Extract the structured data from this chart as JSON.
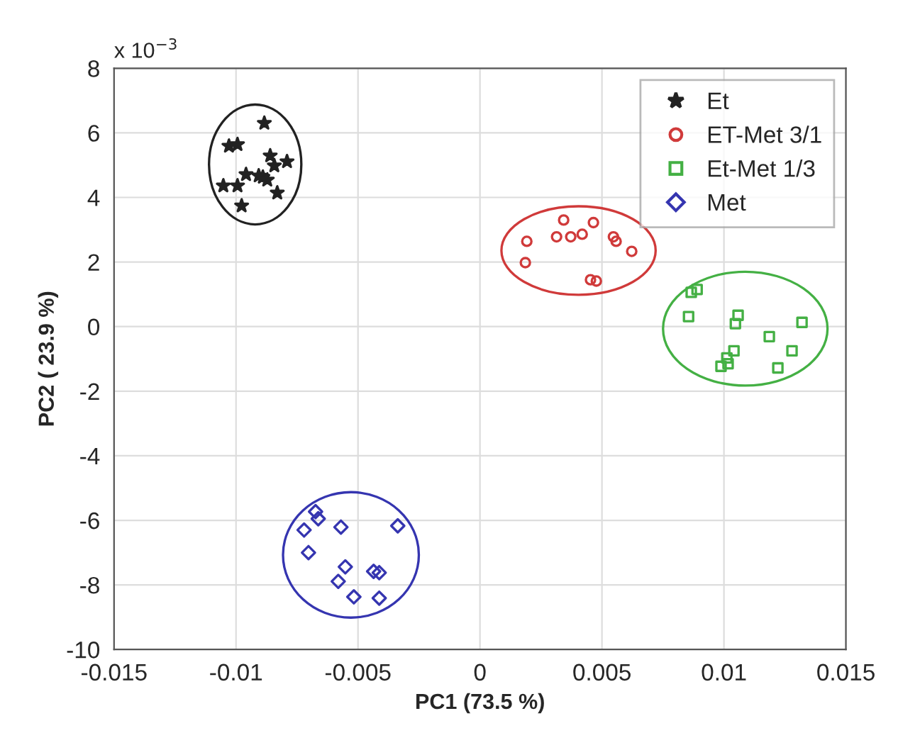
{
  "chart_data": {
    "type": "scatter",
    "xlabel": "PC1 (73.5 %)",
    "ylabel": "PC2 ( 23.9 %)",
    "annotations": [
      "x 10$^{−3}$"
    ],
    "xlim": [
      -0.015,
      0.015
    ],
    "xticks": [
      -0.015,
      -0.01,
      -0.005,
      0,
      0.005,
      0.01,
      0.015
    ],
    "ylim": [
      -10,
      8
    ],
    "yticks": [
      -10,
      -8,
      -6,
      -4,
      -2,
      0,
      2,
      4,
      6,
      8
    ],
    "grid": true,
    "legend": "top right",
    "series": [
      {
        "name": "Et",
        "color": "#222222",
        "marker": "star",
        "x": [
          -0.00884,
          -0.01029,
          -0.00994,
          -0.0086,
          -0.00843,
          -0.00791,
          -0.00959,
          -0.00907,
          -0.0089,
          -0.00872,
          -0.01052,
          -0.00994,
          -0.00831,
          -0.00977
        ],
        "values": [
          6.3,
          5.59,
          5.64,
          5.29,
          4.98,
          5.11,
          4.71,
          4.67,
          4.63,
          4.54,
          4.36,
          4.36,
          4.14,
          3.74
        ]
      },
      {
        "name": "ET-Met 3/1",
        "color": "#d03a3a",
        "marker": "circle",
        "x": [
          0.00343,
          0.00465,
          0.00192,
          0.00314,
          0.00372,
          0.00419,
          0.00547,
          0.00558,
          0.00622,
          0.00186,
          0.00453,
          0.00477
        ],
        "values": [
          3.3,
          3.22,
          2.64,
          2.78,
          2.78,
          2.86,
          2.78,
          2.64,
          2.33,
          1.98,
          1.45,
          1.41
        ]
      },
      {
        "name": "Et-Met 1/3",
        "color": "#44b044",
        "marker": "square",
        "x": [
          0.00866,
          0.0089,
          0.00855,
          0.01058,
          0.01047,
          0.0132,
          0.01186,
          0.01279,
          0.01041,
          0.01012,
          0.00988,
          0.01017,
          0.01221
        ],
        "values": [
          1.06,
          1.15,
          0.31,
          0.35,
          0.09,
          0.13,
          -0.31,
          -0.75,
          -0.75,
          -0.97,
          -1.23,
          -1.15,
          -1.28
        ]
      },
      {
        "name": "Met",
        "color": "#3535b0",
        "marker": "diamond",
        "x": [
          -0.00674,
          -0.00663,
          -0.00721,
          -0.0057,
          -0.00337,
          -0.00703,
          -0.00552,
          -0.00436,
          -0.00413,
          -0.00581,
          -0.00517,
          -0.00413
        ],
        "values": [
          -5.73,
          -5.95,
          -6.3,
          -6.21,
          -6.17,
          -7.0,
          -7.44,
          -7.58,
          -7.62,
          -7.89,
          -8.37,
          -8.41
        ]
      }
    ]
  }
}
